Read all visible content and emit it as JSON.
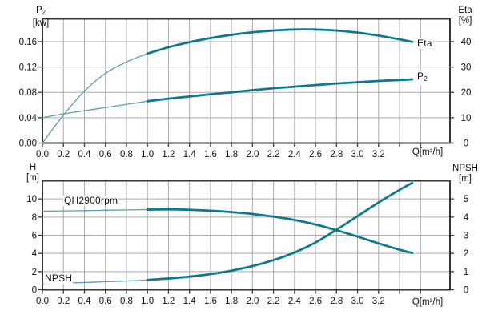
{
  "colors": {
    "curve_thick": "#0d7b8c",
    "curve_thin": "#5b9fb0",
    "grid": "#ababab",
    "axis": "#383838",
    "text": "#111111",
    "background": "#ffffff"
  },
  "chart_data": [
    {
      "type": "line",
      "name": "power-efficiency-chart",
      "x_axis": {
        "title": "Q[m³/h]",
        "min": 0,
        "max": 3.88,
        "tick_values": [
          0,
          0.2,
          0.4,
          0.6,
          0.8,
          1.0,
          1.2,
          1.4,
          1.6,
          1.8,
          2.0,
          2.2,
          2.4,
          2.6,
          2.8,
          3.0,
          3.2,
          3.4,
          3.6
        ],
        "tick_labels": [
          "0.0",
          "0.2",
          "0.4",
          "0.6",
          "0.8",
          "1.0",
          "1.2",
          "1.4",
          "1.6",
          "1.8",
          "2.0",
          "2.2",
          "2.4",
          "2.6",
          "2.8",
          "3.0",
          "3.2",
          "",
          ""
        ]
      },
      "left_axis": {
        "title_base": "P",
        "title_sub": "2",
        "unit": "[kw]",
        "min": 0,
        "max": 0.196,
        "tick_values": [
          0,
          0.04,
          0.08,
          0.12,
          0.16
        ],
        "tick_labels": [
          "0.00",
          "0.04",
          "0.08",
          "0.12",
          "0.16"
        ]
      },
      "right_axis": {
        "title": "Eta",
        "unit": "[%]",
        "min": 0,
        "max": 49,
        "tick_values": [
          0,
          10,
          20,
          30,
          40
        ],
        "tick_labels": [
          "0",
          "10",
          "20",
          "30",
          "40"
        ]
      },
      "series": [
        {
          "name": "Eta",
          "label": "Eta",
          "axis": "right",
          "thin_until": 1.0,
          "points": [
            [
              0,
              0
            ],
            [
              0.2,
              11
            ],
            [
              0.4,
              20.5
            ],
            [
              0.6,
              27.5
            ],
            [
              0.8,
              32
            ],
            [
              1.0,
              35.3
            ],
            [
              1.2,
              37.8
            ],
            [
              1.4,
              39.8
            ],
            [
              1.6,
              41.4
            ],
            [
              1.8,
              42.7
            ],
            [
              2.0,
              43.7
            ],
            [
              2.2,
              44.4
            ],
            [
              2.4,
              44.8
            ],
            [
              2.6,
              44.8
            ],
            [
              2.8,
              44.4
            ],
            [
              3.0,
              43.6
            ],
            [
              3.2,
              42.4
            ],
            [
              3.4,
              40.9
            ],
            [
              3.52,
              39.9
            ]
          ]
        },
        {
          "name": "P2",
          "label_base": "P",
          "label_sub": "2",
          "axis": "left",
          "thin_until": 1.0,
          "points": [
            [
              0,
              0.04
            ],
            [
              0.2,
              0.046
            ],
            [
              0.4,
              0.051
            ],
            [
              0.6,
              0.056
            ],
            [
              0.8,
              0.061
            ],
            [
              1.0,
              0.066
            ],
            [
              1.2,
              0.07
            ],
            [
              1.4,
              0.0735
            ],
            [
              1.6,
              0.077
            ],
            [
              1.8,
              0.08
            ],
            [
              2.0,
              0.0835
            ],
            [
              2.2,
              0.0865
            ],
            [
              2.4,
              0.089
            ],
            [
              2.6,
              0.0915
            ],
            [
              2.8,
              0.094
            ],
            [
              3.0,
              0.096
            ],
            [
              3.2,
              0.098
            ],
            [
              3.4,
              0.0995
            ],
            [
              3.52,
              0.1005
            ]
          ]
        }
      ]
    },
    {
      "type": "line",
      "name": "head-npsh-chart",
      "x_axis": {
        "title": "Q[m³/h]",
        "min": 0,
        "max": 3.88,
        "tick_values": [
          0,
          0.2,
          0.4,
          0.6,
          0.8,
          1.0,
          1.2,
          1.4,
          1.6,
          1.8,
          2.0,
          2.2,
          2.4,
          2.6,
          2.8,
          3.0,
          3.2,
          3.4,
          3.6
        ],
        "tick_labels": [
          "0.0",
          "0.2",
          "0.4",
          "0.6",
          "0.8",
          "1.0",
          "1.2",
          "1.4",
          "1.6",
          "1.8",
          "2.0",
          "2.2",
          "2.4",
          "2.6",
          "2.8",
          "3.0",
          "3.2",
          "",
          ""
        ]
      },
      "left_axis": {
        "title": "H",
        "unit": "[m]",
        "min": 0,
        "max": 12,
        "tick_values": [
          0,
          2,
          4,
          6,
          8,
          10
        ],
        "tick_labels": [
          "0",
          "2",
          "4",
          "6",
          "8",
          "10"
        ]
      },
      "right_axis": {
        "title": "NPSH",
        "unit": "[m]",
        "min": 0,
        "max": 6,
        "tick_values": [
          0,
          1,
          2,
          3,
          4,
          5
        ],
        "tick_labels": [
          "0",
          "1",
          "2",
          "3",
          "4",
          "5"
        ]
      },
      "series": [
        {
          "name": "QH",
          "label": "QH2900rpm",
          "axis": "left",
          "thin_until": 1.0,
          "points": [
            [
              0,
              8.65
            ],
            [
              0.2,
              8.68
            ],
            [
              0.4,
              8.71
            ],
            [
              0.6,
              8.75
            ],
            [
              0.8,
              8.79
            ],
            [
              1.0,
              8.82
            ],
            [
              1.2,
              8.85
            ],
            [
              1.4,
              8.8
            ],
            [
              1.6,
              8.7
            ],
            [
              1.8,
              8.55
            ],
            [
              2.0,
              8.34
            ],
            [
              2.2,
              8.05
            ],
            [
              2.4,
              7.68
            ],
            [
              2.6,
              7.18
            ],
            [
              2.8,
              6.55
            ],
            [
              3.0,
              5.85
            ],
            [
              3.2,
              5.1
            ],
            [
              3.4,
              4.4
            ],
            [
              3.52,
              4.05
            ]
          ]
        },
        {
          "name": "NPSH",
          "label": "NPSH",
          "axis": "right",
          "thin_until": 1.0,
          "points": [
            [
              0,
              0.35
            ],
            [
              0.2,
              0.37
            ],
            [
              0.4,
              0.4
            ],
            [
              0.6,
              0.44
            ],
            [
              0.8,
              0.48
            ],
            [
              1.0,
              0.54
            ],
            [
              1.2,
              0.62
            ],
            [
              1.4,
              0.72
            ],
            [
              1.6,
              0.86
            ],
            [
              1.8,
              1.05
            ],
            [
              2.0,
              1.3
            ],
            [
              2.2,
              1.63
            ],
            [
              2.4,
              2.05
            ],
            [
              2.6,
              2.6
            ],
            [
              2.8,
              3.3
            ],
            [
              3.0,
              4.05
            ],
            [
              3.2,
              4.8
            ],
            [
              3.4,
              5.5
            ],
            [
              3.52,
              5.88
            ]
          ]
        }
      ]
    }
  ]
}
